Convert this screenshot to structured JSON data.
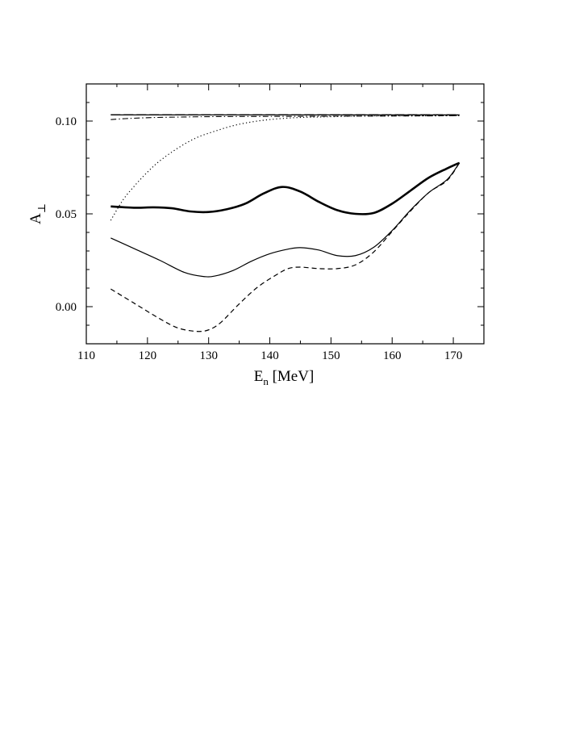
{
  "chart_data": {
    "type": "line",
    "title": "",
    "xlabel": {
      "main": "E",
      "sub": "n",
      "unit": " [MeV]"
    },
    "ylabel": {
      "main": "A",
      "sub": "⊥"
    },
    "xlim": [
      110,
      175
    ],
    "ylim": [
      -0.02,
      0.12
    ],
    "xticks": [
      110,
      120,
      130,
      140,
      150,
      160,
      170
    ],
    "xtick_labels": [
      "110",
      "120",
      "130",
      "140",
      "150",
      "160",
      "170"
    ],
    "yticks": [
      0.0,
      0.05,
      0.1
    ],
    "ytick_labels": [
      "0.00",
      "0.05",
      "0.10"
    ],
    "grid": false,
    "legend": "none",
    "series": [
      {
        "style": "thick-solid",
        "x": [
          114,
          118,
          121,
          124,
          127,
          130,
          133,
          136,
          139,
          142,
          145,
          148,
          151,
          154,
          157,
          160,
          163,
          166,
          169,
          171
        ],
        "y": [
          0.054,
          0.0533,
          0.0535,
          0.053,
          0.0513,
          0.051,
          0.0525,
          0.0555,
          0.061,
          0.0645,
          0.062,
          0.0565,
          0.052,
          0.05,
          0.0505,
          0.0555,
          0.0625,
          0.0695,
          0.0745,
          0.0775
        ]
      },
      {
        "style": "thin-solid",
        "x": [
          114,
          118,
          122,
          126,
          129,
          131,
          134,
          137,
          140,
          143,
          145,
          148,
          151,
          154,
          157,
          160,
          163,
          166,
          169,
          171
        ],
        "y": [
          0.037,
          0.031,
          0.025,
          0.0185,
          0.0163,
          0.0165,
          0.0195,
          0.0245,
          0.0285,
          0.031,
          0.0318,
          0.0305,
          0.0275,
          0.0275,
          0.032,
          0.041,
          0.052,
          0.0615,
          0.0685,
          0.0775
        ]
      },
      {
        "style": "dashed",
        "x": [
          114,
          118,
          122,
          125,
          128,
          130,
          132,
          135,
          138,
          141,
          143,
          145,
          148,
          151,
          154,
          157,
          160,
          163,
          166,
          169,
          171
        ],
        "y": [
          0.0095,
          0.0015,
          -0.0065,
          -0.0115,
          -0.0133,
          -0.0125,
          -0.0085,
          0.0015,
          0.0105,
          0.017,
          0.0205,
          0.0213,
          0.0205,
          0.0205,
          0.0225,
          0.0295,
          0.0405,
          0.0515,
          0.0615,
          0.068,
          0.0775
        ]
      },
      {
        "style": "dotted",
        "x": [
          114,
          116,
          118,
          120,
          122,
          125,
          128,
          131,
          134,
          137,
          140,
          144,
          148,
          152,
          156,
          160,
          165,
          171
        ],
        "y": [
          0.0465,
          0.0575,
          0.0655,
          0.0725,
          0.0785,
          0.0855,
          0.091,
          0.0945,
          0.0975,
          0.0995,
          0.1008,
          0.1018,
          0.1022,
          0.1025,
          0.1027,
          0.1028,
          0.1028,
          0.1029
        ]
      },
      {
        "style": "dash-dot",
        "x": [
          114,
          117,
          121,
          126,
          131,
          140,
          150,
          160,
          171
        ],
        "y": [
          0.1008,
          0.1014,
          0.1019,
          0.1022,
          0.1024,
          0.1025,
          0.1026,
          0.1027,
          0.1029
        ]
      },
      {
        "style": "long-dash",
        "x": [
          114,
          130,
          150,
          171
        ],
        "y": [
          0.1034,
          0.1034,
          0.1034,
          0.1034
        ]
      },
      {
        "style": "thin-solid",
        "x": [
          114,
          140,
          171
        ],
        "y": [
          0.1033,
          0.1033,
          0.1033
        ]
      }
    ]
  }
}
